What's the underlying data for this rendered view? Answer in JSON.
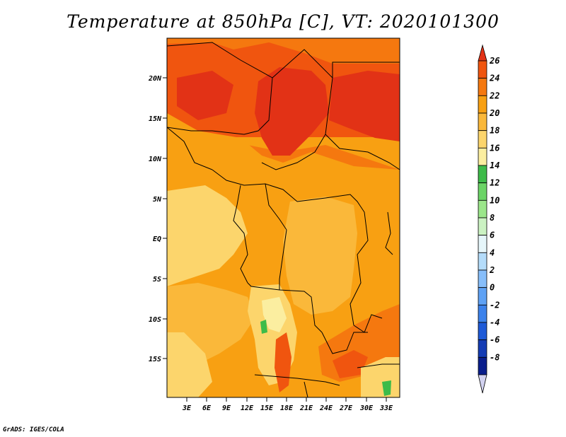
{
  "title": "Temperature at 850hPa [C], VT: 2020101300",
  "credit": "GrADS: IGES/COLA",
  "lat_labels": [
    "20N",
    "15N",
    "10N",
    "5N",
    "EQ",
    "5S",
    "10S",
    "15S"
  ],
  "lon_labels": [
    "3E",
    "6E",
    "9E",
    "12E",
    "15E",
    "18E",
    "21E",
    "24E",
    "27E",
    "30E",
    "33E"
  ],
  "colorbar": {
    "labels": [
      "26",
      "24",
      "22",
      "20",
      "18",
      "16",
      "14",
      "12",
      "10",
      "8",
      "6",
      "4",
      "2",
      "0",
      "-2",
      "-4",
      "-6",
      "-8"
    ],
    "colors": [
      "#e23216",
      "#f0550f",
      "#f5780f",
      "#f8a012",
      "#fab83a",
      "#fcd56c",
      "#fbeea0",
      "#3dbb49",
      "#6bd466",
      "#9be68a",
      "#cbf2c2",
      "#e6f6fa",
      "#b4dcfa",
      "#87befa",
      "#5fa2f5",
      "#3c82eb",
      "#1e5ad7",
      "#143cb4",
      "#0a1e8c",
      "#d2d2f0"
    ]
  }
}
